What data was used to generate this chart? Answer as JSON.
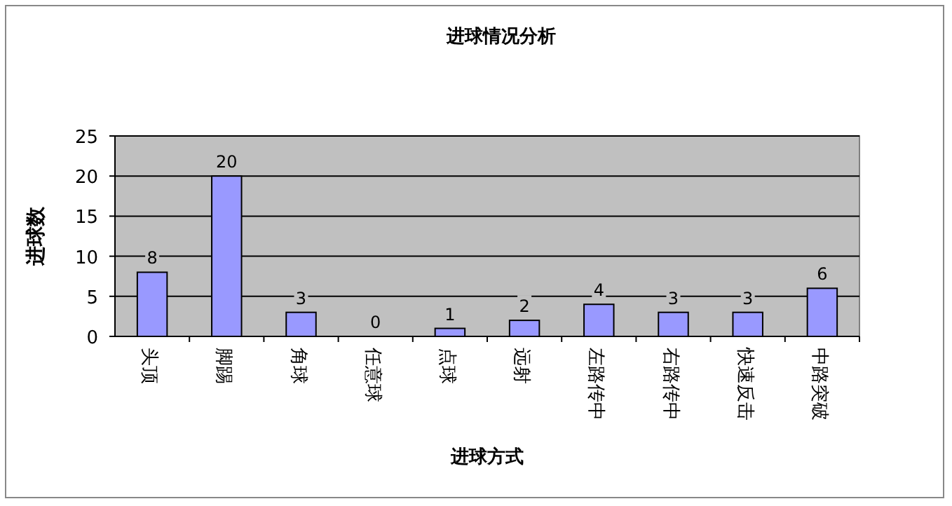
{
  "chart_data": {
    "type": "bar",
    "title": "进球情况分析",
    "xlabel": "进球方式",
    "ylabel": "进球数",
    "categories": [
      "头顶",
      "脚踢",
      "角球",
      "任意球",
      "点球",
      "远射",
      "左路传中",
      "右路传中",
      "快速反击",
      "中路突破"
    ],
    "values": [
      8,
      20,
      3,
      0,
      1,
      2,
      4,
      3,
      3,
      6
    ],
    "color": "#9999ff",
    "ylim": [
      0,
      25
    ],
    "yticks": [
      0,
      5,
      10,
      15,
      20,
      25
    ],
    "grid": "y",
    "data_labels": true,
    "legend": false
  }
}
